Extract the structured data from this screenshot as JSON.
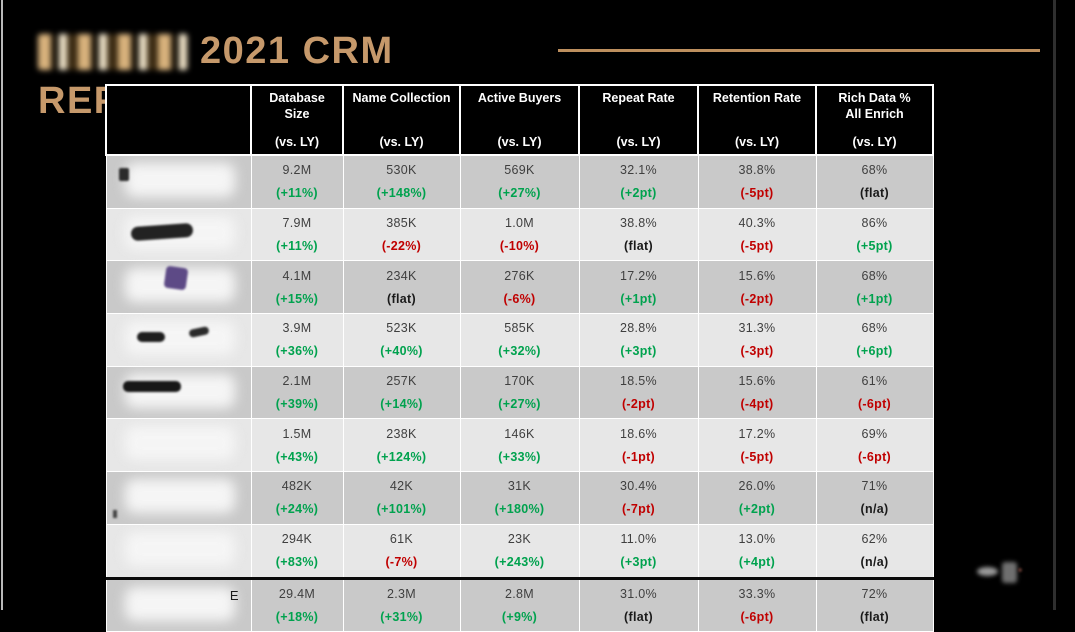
{
  "slide": {
    "title_line1": "2021 CRM",
    "title_line2": "REPO",
    "accent_color": "#C6996B",
    "up_color": "#00A24E",
    "down_color": "#C00000"
  },
  "table": {
    "columns": [
      {
        "title": "Database\nSize",
        "sub": "(vs. LY)"
      },
      {
        "title": "Name Collection",
        "sub": "(vs. LY)"
      },
      {
        "title": "Active Buyers",
        "sub": "(vs. LY)"
      },
      {
        "title": "Repeat Rate",
        "sub": "(vs. LY)"
      },
      {
        "title": "Retention Rate",
        "sub": "(vs. LY)"
      },
      {
        "title": "Rich Data %\nAll Enrich",
        "sub": "(vs. LY)"
      }
    ],
    "rows": [
      {
        "label_visible": "",
        "redacted_logo": true,
        "total": false,
        "cells": [
          {
            "value": "9.2M",
            "change": "(+11%)",
            "dir": "up"
          },
          {
            "value": "530K",
            "change": "(+148%)",
            "dir": "up"
          },
          {
            "value": "569K",
            "change": "(+27%)",
            "dir": "up"
          },
          {
            "value": "32.1%",
            "change": "(+2pt)",
            "dir": "up"
          },
          {
            "value": "38.8%",
            "change": "(-5pt)",
            "dir": "down"
          },
          {
            "value": "68%",
            "change": "(flat)",
            "dir": "flat"
          }
        ]
      },
      {
        "label_visible": "",
        "redacted_logo": true,
        "total": false,
        "cells": [
          {
            "value": "7.9M",
            "change": "(+11%)",
            "dir": "up"
          },
          {
            "value": "385K",
            "change": "(-22%)",
            "dir": "down"
          },
          {
            "value": "1.0M",
            "change": "(-10%)",
            "dir": "down"
          },
          {
            "value": "38.8%",
            "change": "(flat)",
            "dir": "flat"
          },
          {
            "value": "40.3%",
            "change": "(-5pt)",
            "dir": "down"
          },
          {
            "value": "86%",
            "change": "(+5pt)",
            "dir": "up"
          }
        ]
      },
      {
        "label_visible": "",
        "redacted_logo": true,
        "total": false,
        "cells": [
          {
            "value": "4.1M",
            "change": "(+15%)",
            "dir": "up"
          },
          {
            "value": "234K",
            "change": "(flat)",
            "dir": "flat"
          },
          {
            "value": "276K",
            "change": "(-6%)",
            "dir": "down"
          },
          {
            "value": "17.2%",
            "change": "(+1pt)",
            "dir": "up"
          },
          {
            "value": "15.6%",
            "change": "(-2pt)",
            "dir": "down"
          },
          {
            "value": "68%",
            "change": "(+1pt)",
            "dir": "up"
          }
        ]
      },
      {
        "label_visible": "",
        "redacted_logo": true,
        "total": false,
        "cells": [
          {
            "value": "3.9M",
            "change": "(+36%)",
            "dir": "up"
          },
          {
            "value": "523K",
            "change": "(+40%)",
            "dir": "up"
          },
          {
            "value": "585K",
            "change": "(+32%)",
            "dir": "up"
          },
          {
            "value": "28.8%",
            "change": "(+3pt)",
            "dir": "up"
          },
          {
            "value": "31.3%",
            "change": "(-3pt)",
            "dir": "down"
          },
          {
            "value": "68%",
            "change": "(+6pt)",
            "dir": "up"
          }
        ]
      },
      {
        "label_visible": "",
        "redacted_logo": true,
        "total": false,
        "cells": [
          {
            "value": "2.1M",
            "change": "(+39%)",
            "dir": "up"
          },
          {
            "value": "257K",
            "change": "(+14%)",
            "dir": "up"
          },
          {
            "value": "170K",
            "change": "(+27%)",
            "dir": "up"
          },
          {
            "value": "18.5%",
            "change": "(-2pt)",
            "dir": "down"
          },
          {
            "value": "15.6%",
            "change": "(-4pt)",
            "dir": "down"
          },
          {
            "value": "61%",
            "change": "(-6pt)",
            "dir": "down"
          }
        ]
      },
      {
        "label_visible": "",
        "redacted_logo": true,
        "total": false,
        "cells": [
          {
            "value": "1.5M",
            "change": "(+43%)",
            "dir": "up"
          },
          {
            "value": "238K",
            "change": "(+124%)",
            "dir": "up"
          },
          {
            "value": "146K",
            "change": "(+33%)",
            "dir": "up"
          },
          {
            "value": "18.6%",
            "change": "(-1pt)",
            "dir": "down"
          },
          {
            "value": "17.2%",
            "change": "(-5pt)",
            "dir": "down"
          },
          {
            "value": "69%",
            "change": "(-6pt)",
            "dir": "down"
          }
        ]
      },
      {
        "label_visible": "",
        "redacted_logo": true,
        "total": false,
        "cells": [
          {
            "value": "482K",
            "change": "(+24%)",
            "dir": "up"
          },
          {
            "value": "42K",
            "change": "(+101%)",
            "dir": "up"
          },
          {
            "value": "31K",
            "change": "(+180%)",
            "dir": "up"
          },
          {
            "value": "30.4%",
            "change": "(-7pt)",
            "dir": "down"
          },
          {
            "value": "26.0%",
            "change": "(+2pt)",
            "dir": "up"
          },
          {
            "value": "71%",
            "change": "(n/a)",
            "dir": "flat"
          }
        ]
      },
      {
        "label_visible": "",
        "redacted_logo": true,
        "total": false,
        "cells": [
          {
            "value": "294K",
            "change": "(+83%)",
            "dir": "up"
          },
          {
            "value": "61K",
            "change": "(-7%)",
            "dir": "down"
          },
          {
            "value": "23K",
            "change": "(+243%)",
            "dir": "up"
          },
          {
            "value": "11.0%",
            "change": "(+3pt)",
            "dir": "up"
          },
          {
            "value": "13.0%",
            "change": "(+4pt)",
            "dir": "up"
          },
          {
            "value": "62%",
            "change": "(n/a)",
            "dir": "flat"
          }
        ]
      },
      {
        "label_visible": "E",
        "redacted_logo": true,
        "total": true,
        "cells": [
          {
            "value": "29.4M",
            "change": "(+18%)",
            "dir": "up"
          },
          {
            "value": "2.3M",
            "change": "(+31%)",
            "dir": "up"
          },
          {
            "value": "2.8M",
            "change": "(+9%)",
            "dir": "up"
          },
          {
            "value": "31.0%",
            "change": "(flat)",
            "dir": "flat"
          },
          {
            "value": "33.3%",
            "change": "(-6pt)",
            "dir": "down"
          },
          {
            "value": "72%",
            "change": "(flat)",
            "dir": "flat"
          }
        ]
      }
    ]
  }
}
